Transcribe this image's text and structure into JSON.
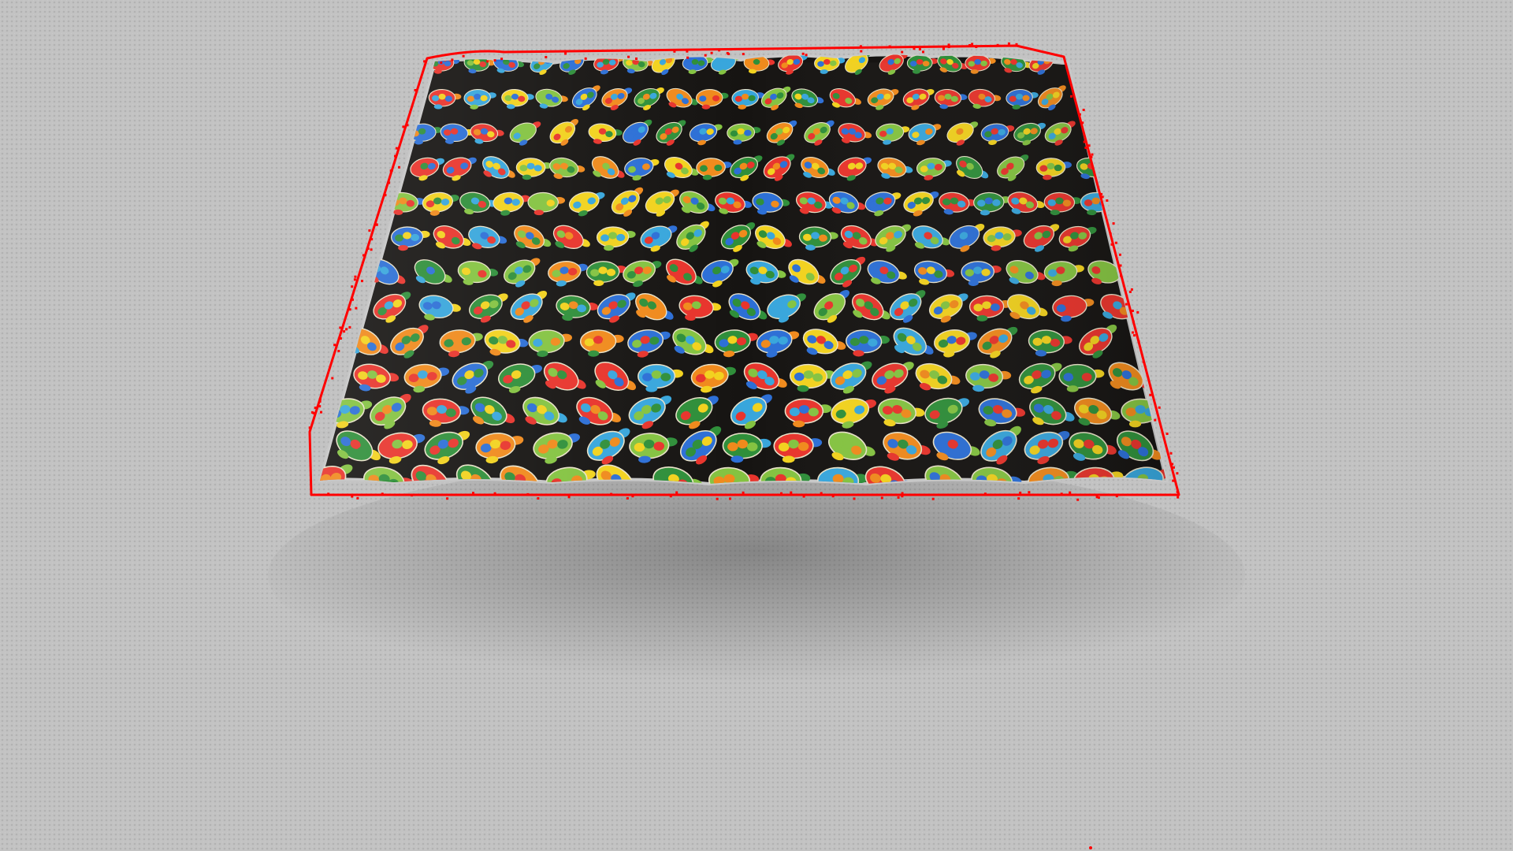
{
  "scene": {
    "subject": "patterned-cloth-sheet",
    "annotation": "segmentation-outline",
    "colors": {
      "floor": "#c3c3c3",
      "floor_dot": "#b2b2b2",
      "floor_highlight": "#d0d0d0",
      "shadow": "#3a3a3a",
      "cloth_base": "#161412",
      "outline": "#ff0000",
      "cloth_edge": "#c8c8c8",
      "motif_palette": [
        "#e8342c",
        "#2f8f3a",
        "#f08a1c",
        "#2c6fd6",
        "#f2d21e",
        "#84c341",
        "#38a6dc"
      ]
    }
  }
}
